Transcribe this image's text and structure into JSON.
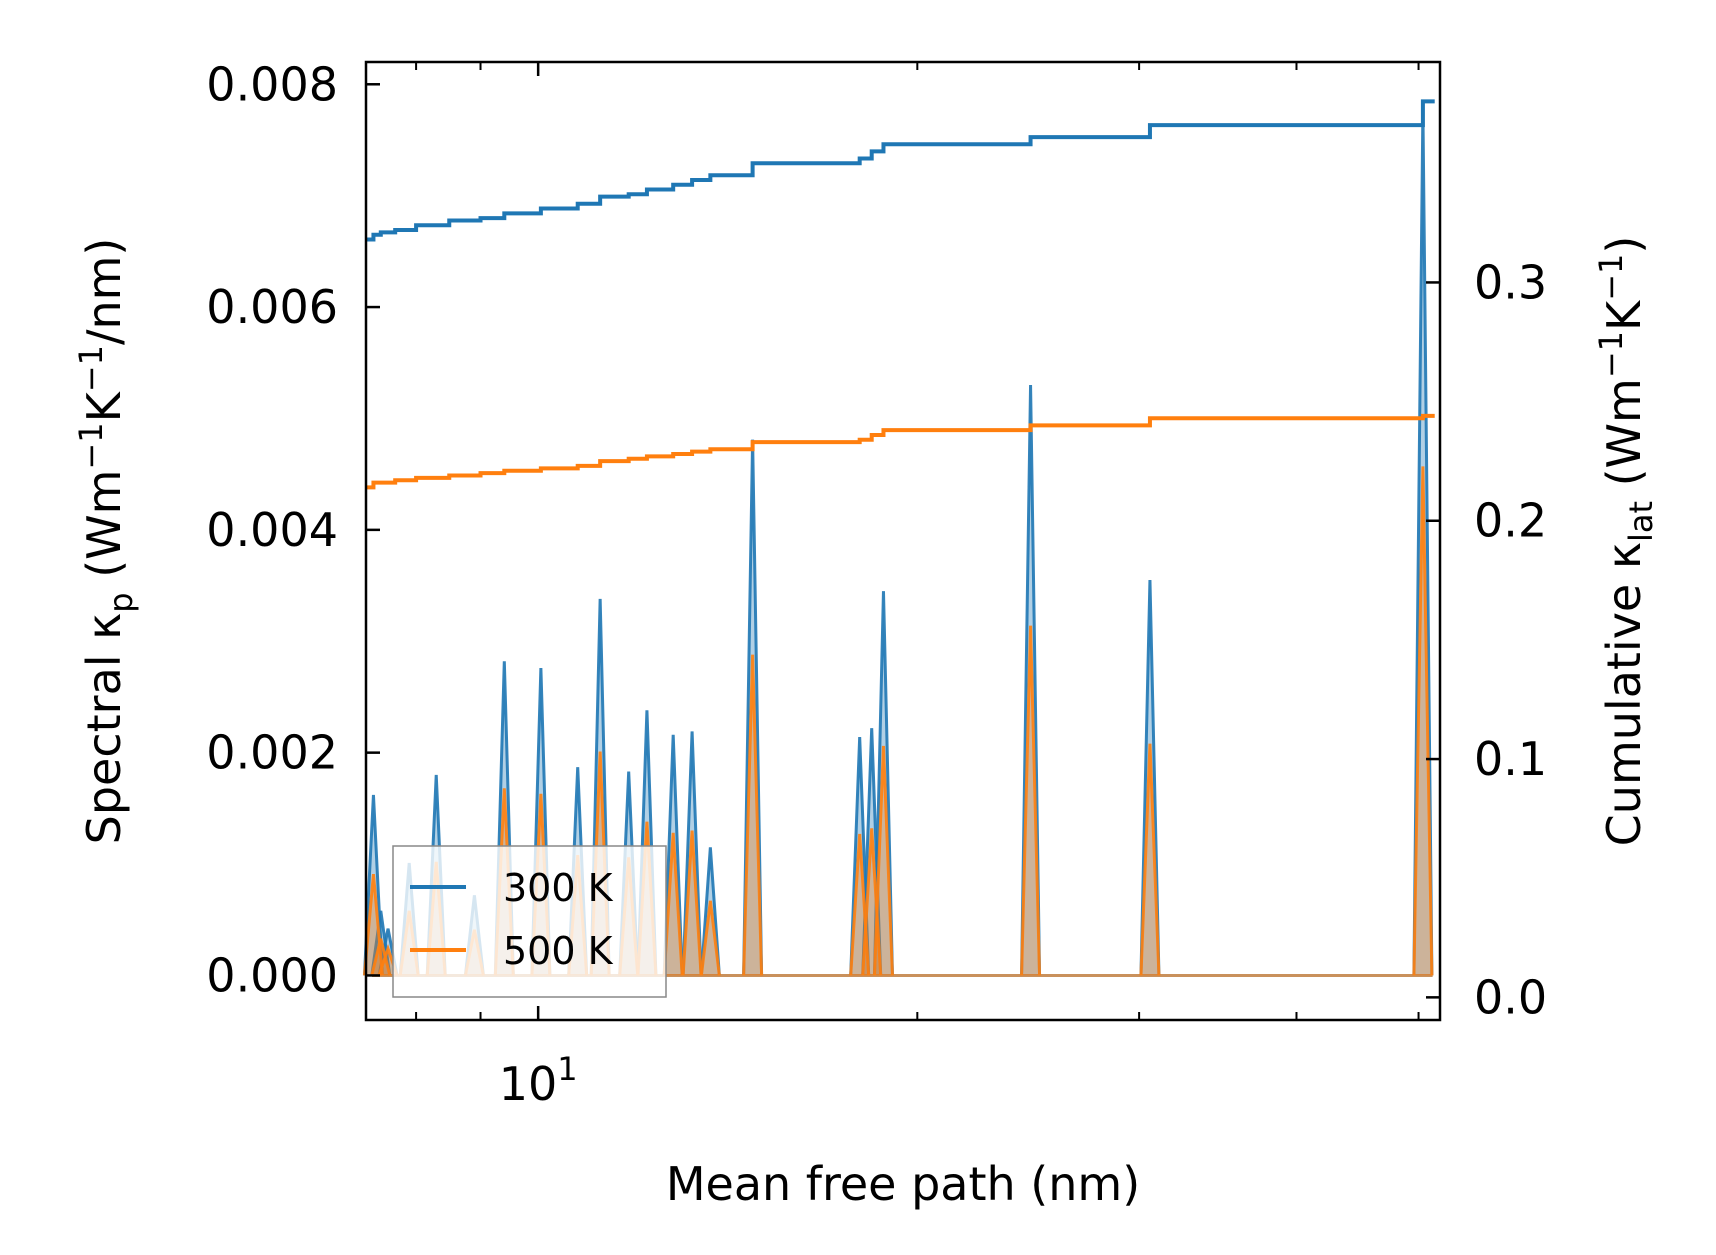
{
  "chart_data": {
    "type": "line",
    "xscale": "log",
    "xlim": [
      7.3,
      52.0
    ],
    "x_major_tick": {
      "value": 10,
      "base": "10",
      "exponent": "1"
    },
    "x_minor_ticks": [
      8,
      9,
      20,
      30,
      40,
      50
    ],
    "xlabel": "Mean free path (nm)",
    "left_axis": {
      "ylim": [
        -0.0004,
        0.0082
      ],
      "ticks": [
        "0.000",
        "0.002",
        "0.004",
        "0.006",
        "0.008"
      ],
      "tick_values": [
        0.0,
        0.002,
        0.004,
        0.006,
        0.008
      ],
      "label_prefix": "Spectral κ",
      "label_sub": "p",
      "label_body": " (Wm",
      "label_sup1": "−1",
      "label_mid": "K",
      "label_sup2": "−1",
      "label_end": "/nm)"
    },
    "right_axis": {
      "ylim": [
        -0.0095,
        0.3925
      ],
      "ticks": [
        "0.0",
        "0.1",
        "0.2",
        "0.3"
      ],
      "tick_values": [
        0.0,
        0.1,
        0.2,
        0.3
      ],
      "label_prefix": "Cumulative κ",
      "label_sub": "lat",
      "label_body": " (Wm",
      "label_sup1": "−1",
      "label_mid": "K",
      "label_sup2": "−1",
      "label_end": ")"
    },
    "legend": {
      "placement": "lower-left",
      "entries": [
        "300 K",
        "500 K"
      ]
    },
    "colors": {
      "300 K": "#1f77b4",
      "500 K": "#ff7f0e"
    },
    "spectral_peaks": {
      "x": [
        7.4,
        7.5,
        7.6,
        7.9,
        8.3,
        8.9,
        9.4,
        10.05,
        10.75,
        11.2,
        11.8,
        12.2,
        12.8,
        13.25,
        13.7,
        14.8,
        18.0,
        18.4,
        18.8,
        24.6,
        30.6,
        50.4
      ],
      "300 K": [
        0.00162,
        0.00058,
        0.00042,
        0.00101,
        0.0018,
        0.00072,
        0.00282,
        0.00276,
        0.00187,
        0.00338,
        0.00183,
        0.00238,
        0.00216,
        0.00219,
        0.00115,
        0.00481,
        0.00214,
        0.00222,
        0.00345,
        0.0053,
        0.00355,
        0.00778
      ],
      "500 K": [
        0.00091,
        0.00033,
        0.00024,
        0.00058,
        0.00102,
        0.00041,
        0.00168,
        0.00163,
        0.00108,
        0.00201,
        0.00106,
        0.00138,
        0.00128,
        0.0013,
        0.00067,
        0.00288,
        0.00127,
        0.00132,
        0.00206,
        0.00314,
        0.00208,
        0.00457
      ]
    },
    "cumulative": {
      "x": [
        7.3,
        7.4,
        7.5,
        7.7,
        8.0,
        8.5,
        9.0,
        9.4,
        10.05,
        10.75,
        11.2,
        11.8,
        12.2,
        12.8,
        13.25,
        13.7,
        14.8,
        18.0,
        18.4,
        18.8,
        24.6,
        30.6,
        50.4,
        51.5
      ],
      "300 K": [
        0.318,
        0.32,
        0.321,
        0.322,
        0.324,
        0.326,
        0.327,
        0.329,
        0.331,
        0.333,
        0.336,
        0.337,
        0.339,
        0.341,
        0.343,
        0.345,
        0.35,
        0.352,
        0.355,
        0.358,
        0.361,
        0.366,
        0.376,
        0.376
      ],
      "500 K": [
        0.214,
        0.216,
        0.216,
        0.217,
        0.218,
        0.219,
        0.22,
        0.221,
        0.222,
        0.223,
        0.225,
        0.226,
        0.227,
        0.228,
        0.229,
        0.23,
        0.233,
        0.234,
        0.236,
        0.238,
        0.24,
        0.243,
        0.244,
        0.244
      ]
    }
  }
}
